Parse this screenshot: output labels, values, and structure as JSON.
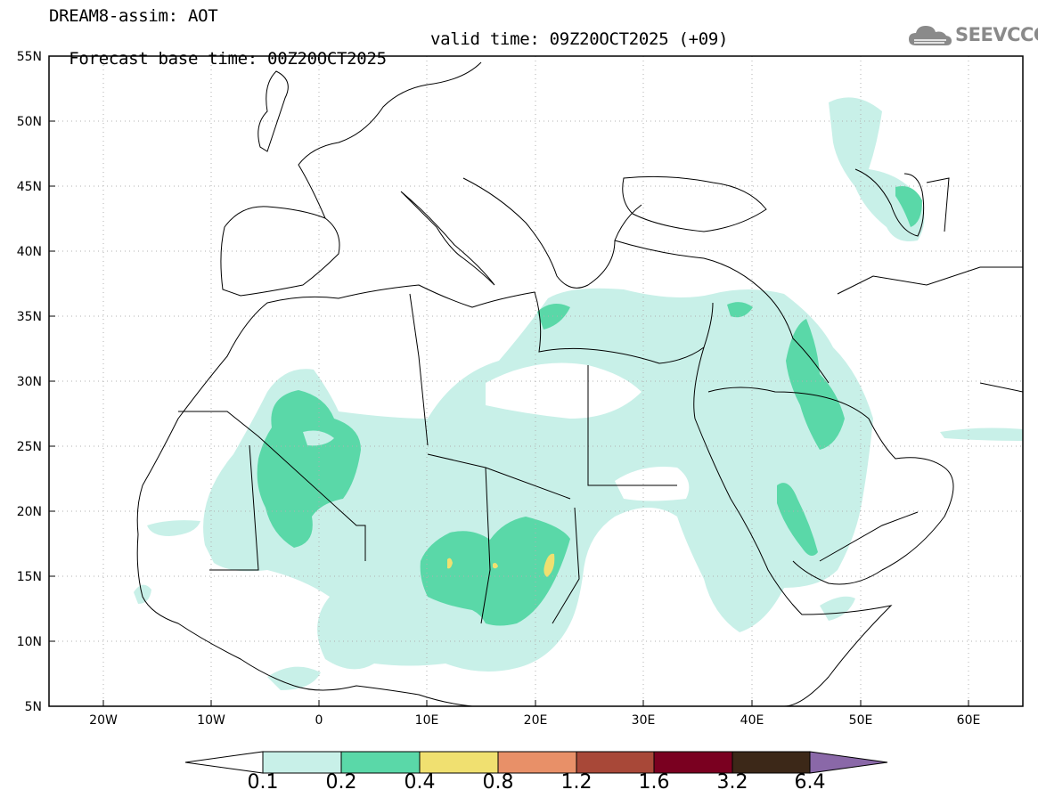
{
  "header": {
    "title_line1": "DREAM8-assim: AOT",
    "base_time": "Forecast base time: 00Z20OCT2025",
    "valid_time": "valid time: 09Z20OCT2025 (+09)"
  },
  "logo": {
    "text": "SEEVCCC",
    "icon": "cloud-icon"
  },
  "map": {
    "lat_labels": [
      "55N",
      "50N",
      "45N",
      "40N",
      "35N",
      "30N",
      "25N",
      "20N",
      "15N",
      "10N",
      "5N"
    ],
    "lon_labels": [
      "20W",
      "10W",
      "0",
      "10E",
      "20E",
      "30E",
      "40E",
      "50E",
      "60E"
    ],
    "lon_range": [
      -25,
      65
    ],
    "lat_range": [
      5,
      55
    ]
  },
  "legend": {
    "levels": [
      "0.1",
      "0.2",
      "0.4",
      "0.8",
      "1.2",
      "1.6",
      "3.2",
      "6.4"
    ],
    "colors": [
      "#c8f0e8",
      "#5ad8a8",
      "#f0e070",
      "#e89068",
      "#a84838",
      "#7a0020",
      "#3c2818",
      "#8a68a8"
    ],
    "arrow_left_color": "#ffffff"
  }
}
